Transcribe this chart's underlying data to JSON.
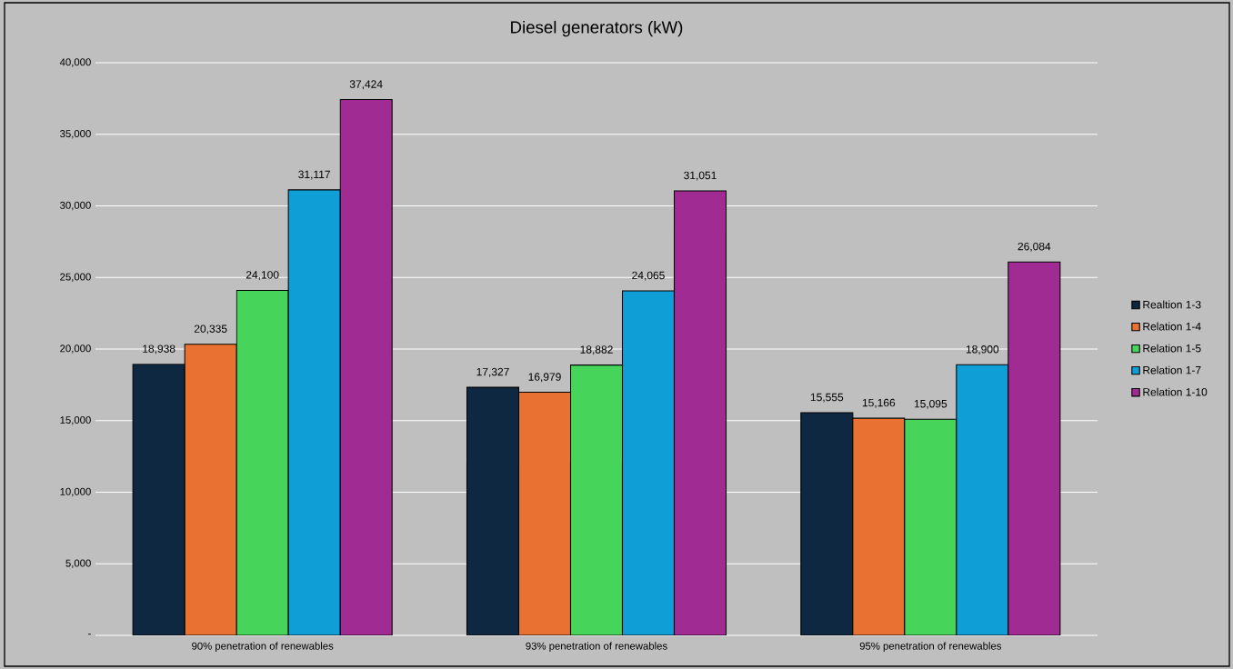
{
  "chart_data": {
    "type": "bar",
    "title": "Diesel generators (kW)",
    "categories": [
      "90% penetration of renewables",
      "93% penetration of renewables",
      "95% penetration of renewables"
    ],
    "series": [
      {
        "name": "Realtion 1-3",
        "color": "#0e2841",
        "values": [
          18938,
          17327,
          15555
        ],
        "value_labels": [
          "18,938",
          "17,327",
          "15,555"
        ]
      },
      {
        "name": "Relation 1-4",
        "color": "#e97132",
        "values": [
          20335,
          16979,
          15166
        ],
        "value_labels": [
          "20,335",
          "16,979",
          "15,166"
        ]
      },
      {
        "name": "Relation 1-5",
        "color": "#47d45a",
        "values": [
          24100,
          18882,
          15095
        ],
        "value_labels": [
          "24,100",
          "18,882",
          "15,095"
        ]
      },
      {
        "name": "Relation 1-7",
        "color": "#0f9ed5",
        "values": [
          31117,
          24065,
          18900
        ],
        "value_labels": [
          "31,117",
          "24,065",
          "18,900"
        ]
      },
      {
        "name": "Relation 1-10",
        "color": "#a02b93",
        "values": [
          37424,
          31051,
          26084
        ],
        "value_labels": [
          "37,424",
          "31,051",
          "26,084"
        ]
      }
    ],
    "ylim": [
      0,
      40000
    ],
    "yticks": [
      {
        "value": 0,
        "label": "-"
      },
      {
        "value": 5000,
        "label": "5,000"
      },
      {
        "value": 10000,
        "label": "10,000"
      },
      {
        "value": 15000,
        "label": "15,000"
      },
      {
        "value": 20000,
        "label": "20,000"
      },
      {
        "value": 25000,
        "label": "25,000"
      },
      {
        "value": 30000,
        "label": "30,000"
      },
      {
        "value": 35000,
        "label": "35,000"
      },
      {
        "value": 40000,
        "label": "40,000"
      }
    ],
    "grid": "y",
    "legend": "right"
  }
}
